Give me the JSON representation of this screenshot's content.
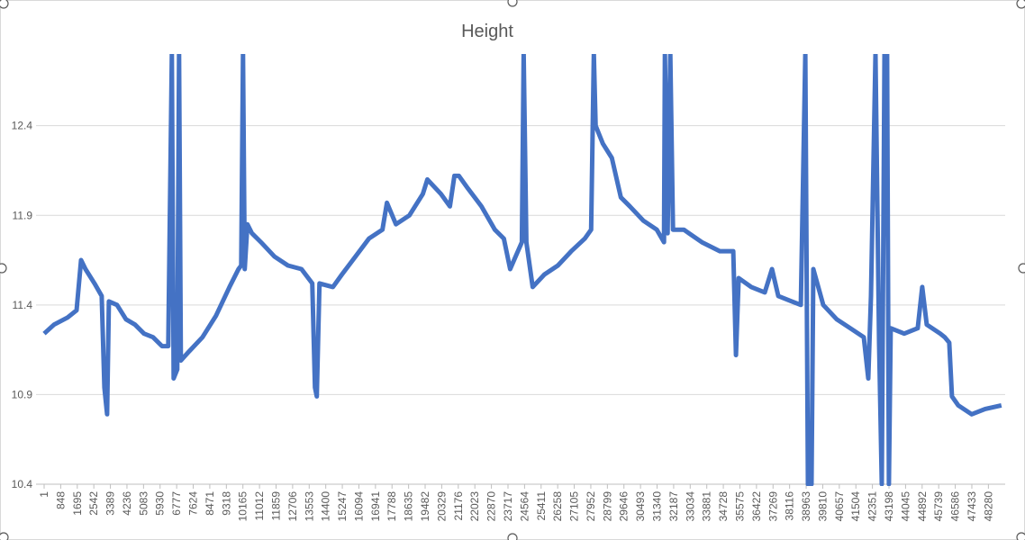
{
  "chart_data": {
    "type": "line",
    "title": "Height",
    "xlim": [
      1,
      49000
    ],
    "xticks": [
      1,
      848,
      1695,
      2542,
      3389,
      4236,
      5083,
      5930,
      6777,
      7624,
      8471,
      9318,
      10165,
      11012,
      11859,
      12706,
      13553,
      14400,
      15247,
      16094,
      16941,
      17788,
      18635,
      19482,
      20329,
      21176,
      22023,
      22870,
      23717,
      24564,
      25411,
      26258,
      27105,
      27952,
      28799,
      29646,
      30493,
      31340,
      32187,
      33034,
      33881,
      34728,
      35575,
      36422,
      37269,
      38116,
      38963,
      39810,
      40657,
      41504,
      42351,
      43198,
      44045,
      44892,
      45739,
      46586,
      47433,
      48280
    ],
    "ylim": [
      10.4,
      12.8
    ],
    "yticks": [
      10.4,
      10.9,
      11.4,
      11.9,
      12.4
    ],
    "grid": true,
    "series": [
      {
        "name": "Height",
        "color": "#4472c4",
        "x": [
          1,
          507,
          1197,
          1657,
          1887,
          2117,
          2577,
          2945,
          3083,
          3221,
          3313,
          3727,
          4187,
          4647,
          5107,
          5567,
          6027,
          6349,
          6533,
          6625,
          6809,
          6901,
          6993,
          7407,
          8097,
          8787,
          9477,
          9937,
          10075,
          10167,
          10259,
          10397,
          10627,
          11087,
          11777,
          12467,
          13157,
          13709,
          13847,
          13939,
          14077,
          14767,
          15227,
          15917,
          16607,
          17297,
          17527,
          17987,
          18677,
          19367,
          19597,
          20287,
          20747,
          20977,
          21207,
          21667,
          22357,
          23047,
          23507,
          23829,
          24105,
          24427,
          24519,
          24657,
          24979,
          25577,
          26267,
          26957,
          27647,
          27969,
          28107,
          28199,
          28567,
          29027,
          29487,
          29947,
          30637,
          31327,
          31695,
          31741,
          31879,
          32017,
          32155,
          32707,
          33627,
          34547,
          35237,
          35375,
          35513,
          36157,
          36847,
          37215,
          37537,
          38227,
          38687,
          38917,
          39055,
          39239,
          39331,
          39837,
          40527,
          41217,
          41907,
          42137,
          42275,
          42505,
          42689,
          42827,
          42965,
          43103,
          43195,
          43287,
          43977,
          44667,
          44897,
          45127,
          45817,
          46047,
          46277,
          46415,
          46737,
          47427,
          48117,
          48945
        ],
        "values": [
          11.24,
          11.29,
          11.33,
          11.37,
          11.65,
          11.6,
          11.52,
          11.45,
          10.94,
          10.79,
          11.42,
          11.4,
          11.32,
          11.29,
          11.24,
          11.22,
          11.17,
          11.17,
          12.8,
          10.99,
          11.04,
          12.8,
          11.09,
          11.14,
          11.22,
          11.34,
          11.5,
          11.6,
          11.62,
          12.8,
          11.6,
          11.85,
          11.8,
          11.75,
          11.67,
          11.62,
          11.6,
          11.52,
          10.94,
          10.89,
          11.52,
          11.5,
          11.57,
          11.67,
          11.77,
          11.82,
          11.97,
          11.85,
          11.9,
          12.02,
          12.1,
          12.02,
          11.95,
          12.12,
          12.12,
          12.05,
          11.95,
          11.82,
          11.77,
          11.6,
          11.67,
          11.75,
          12.8,
          11.75,
          11.5,
          11.57,
          11.62,
          11.7,
          11.77,
          11.82,
          12.8,
          12.4,
          12.3,
          12.22,
          12.0,
          11.95,
          11.87,
          11.82,
          11.75,
          12.8,
          11.8,
          12.8,
          11.82,
          11.82,
          11.75,
          11.7,
          11.7,
          11.12,
          11.55,
          11.5,
          11.47,
          11.6,
          11.45,
          11.42,
          11.4,
          12.8,
          10.4,
          10.4,
          11.6,
          11.4,
          11.32,
          11.27,
          11.22,
          10.99,
          11.45,
          12.8,
          11.19,
          10.4,
          12.8,
          12.8,
          10.4,
          11.27,
          11.24,
          11.27,
          11.5,
          11.29,
          11.24,
          11.22,
          11.19,
          10.89,
          10.84,
          10.79,
          10.82,
          10.84
        ]
      }
    ]
  }
}
